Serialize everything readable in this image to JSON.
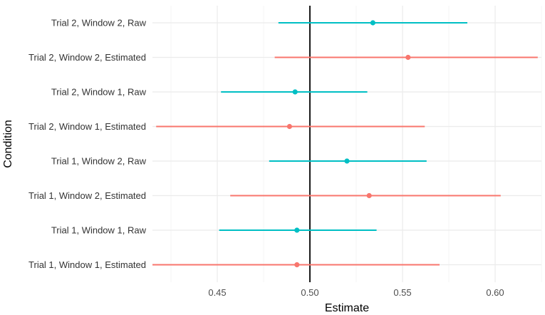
{
  "chart_data": {
    "type": "forest",
    "title": "",
    "xlabel": "Estimate",
    "ylabel": "Condition",
    "xlim": [
      0.415,
      0.625
    ],
    "xticks": [
      0.45,
      0.5,
      0.55,
      0.6
    ],
    "xtick_labels": [
      "0.45",
      "0.50",
      "0.55",
      "0.60"
    ],
    "reference_line": 0.5,
    "grid": true,
    "colors": {
      "Raw": "#00BFC4",
      "Estimated": "#F8766D",
      "reference": "#000000",
      "grid": "#ebebeb"
    },
    "rows": [
      {
        "label": "Trial 2, Window 2, Raw",
        "group": "Raw",
        "estimate": 0.534,
        "lower": 0.483,
        "upper": 0.585
      },
      {
        "label": "Trial 2, Window 2, Estimated",
        "group": "Estimated",
        "estimate": 0.553,
        "lower": 0.481,
        "upper": 0.623
      },
      {
        "label": "Trial 2, Window 1, Raw",
        "group": "Raw",
        "estimate": 0.492,
        "lower": 0.452,
        "upper": 0.531
      },
      {
        "label": "Trial 2, Window 1, Estimated",
        "group": "Estimated",
        "estimate": 0.489,
        "lower": 0.417,
        "upper": 0.562
      },
      {
        "label": "Trial 1, Window 2, Raw",
        "group": "Raw",
        "estimate": 0.52,
        "lower": 0.478,
        "upper": 0.563
      },
      {
        "label": "Trial 1, Window 2, Estimated",
        "group": "Estimated",
        "estimate": 0.532,
        "lower": 0.457,
        "upper": 0.603
      },
      {
        "label": "Trial 1, Window 1, Raw",
        "group": "Raw",
        "estimate": 0.493,
        "lower": 0.451,
        "upper": 0.536
      },
      {
        "label": "Trial 1, Window 1, Estimated",
        "group": "Estimated",
        "estimate": 0.493,
        "lower": 0.415,
        "upper": 0.57
      }
    ]
  }
}
